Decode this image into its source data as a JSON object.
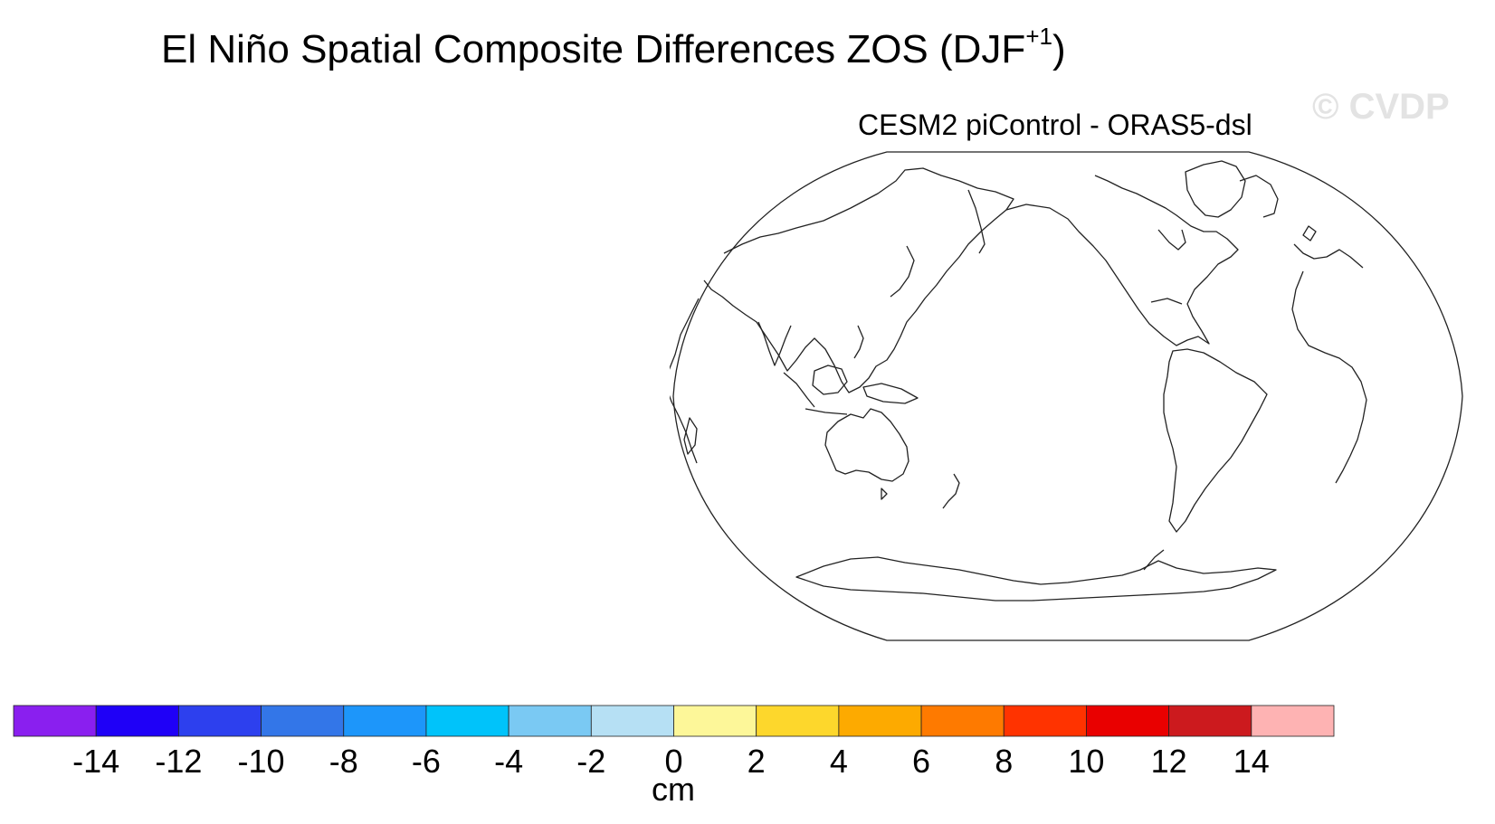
{
  "figure": {
    "title_main": "El Niño Spatial Composite Differences ZOS (DJF",
    "title_sup": "+1",
    "title_close": ")",
    "watermark": "© CVDP",
    "panel_subtitle": "CESM2 piControl - ORAS5-dsl"
  },
  "map": {
    "projection": "robinson",
    "central_longitude": 180,
    "coastline_color": "#222222",
    "field_shown": false
  },
  "colorbar": {
    "units": "cm",
    "tick_labels": [
      "-14",
      "-12",
      "-10",
      "-8",
      "-6",
      "-4",
      "-2",
      "0",
      "2",
      "4",
      "6",
      "8",
      "10",
      "12",
      "14"
    ],
    "colors": [
      "#8a1fef",
      "#1f00f7",
      "#2d40ee",
      "#3376e8",
      "#1d96fa",
      "#00c3fa",
      "#7ac9f3",
      "#b6e0f4",
      "#fdf799",
      "#fdd72c",
      "#fdaa00",
      "#fe7a00",
      "#ff3300",
      "#e90000",
      "#cc1a1e",
      "#feb3b3"
    ]
  }
}
